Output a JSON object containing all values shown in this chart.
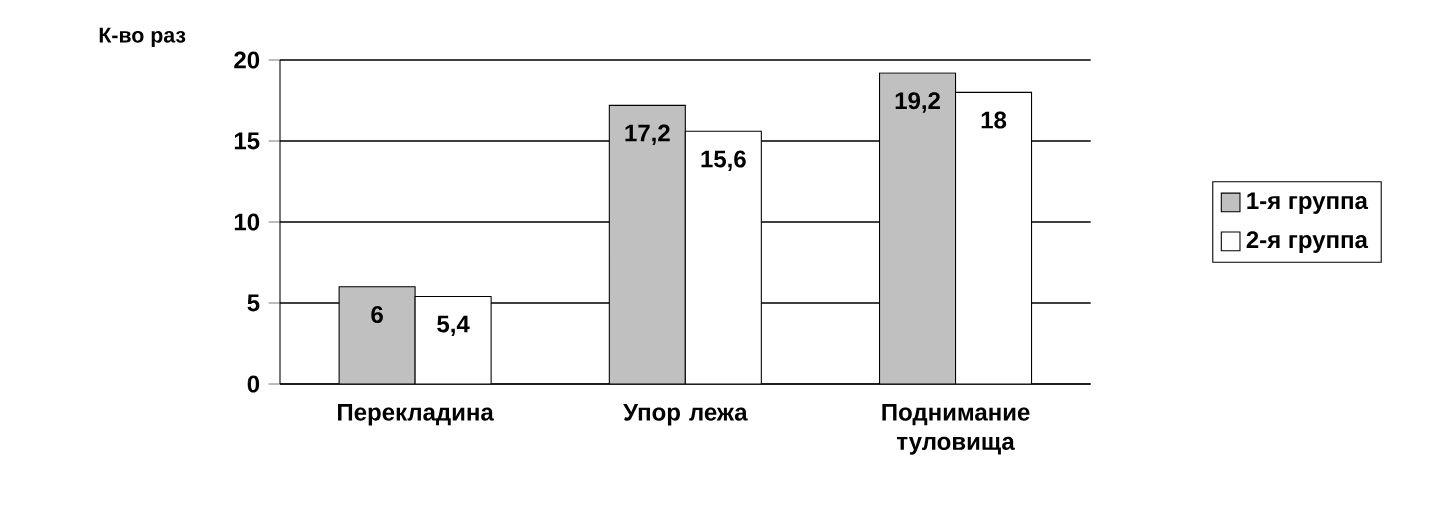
{
  "chart_data": {
    "type": "bar",
    "ylabel": "К-во раз",
    "categories": [
      "Перекладина",
      "Упор лежа",
      "Поднимание туловища"
    ],
    "series": [
      {
        "name": "1-я группа",
        "color": "#c0c0c0",
        "values": [
          6,
          17.2,
          19.2
        ],
        "value_labels": [
          "6",
          "17,2",
          "19,2"
        ]
      },
      {
        "name": "2-я группа",
        "color": "#ffffff",
        "values": [
          5.4,
          15.6,
          18
        ],
        "value_labels": [
          "5,4",
          "15,6",
          "18"
        ]
      }
    ],
    "ylim": [
      0,
      20
    ],
    "yticks": [
      0,
      5,
      10,
      15,
      20
    ],
    "grid": "y",
    "legend": "right"
  }
}
